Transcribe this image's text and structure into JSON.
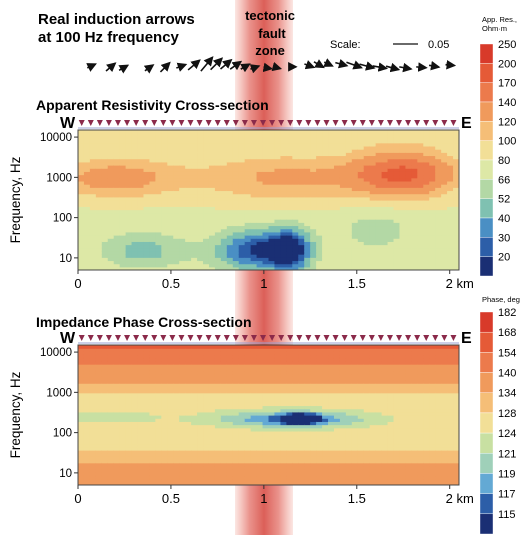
{
  "arrows_title": [
    "Real induction arrows",
    "at 100 Hz frequency"
  ],
  "fault_label": [
    "tectonic",
    "fault",
    "zone"
  ],
  "scale": {
    "label": "Scale:",
    "value": "0.05"
  },
  "induction_arrows": [
    {
      "x": 0.02,
      "angle": -25,
      "len": 0.9
    },
    {
      "x": 0.08,
      "angle": -40,
      "len": 1.2
    },
    {
      "x": 0.12,
      "angle": -30,
      "len": 1.0
    },
    {
      "x": 0.2,
      "angle": -35,
      "len": 1.0
    },
    {
      "x": 0.25,
      "angle": -45,
      "len": 1.3
    },
    {
      "x": 0.3,
      "angle": -20,
      "len": 1.0
    },
    {
      "x": 0.34,
      "angle": -40,
      "len": 1.5
    },
    {
      "x": 0.38,
      "angle": -50,
      "len": 1.8
    },
    {
      "x": 0.41,
      "angle": -45,
      "len": 1.6
    },
    {
      "x": 0.44,
      "angle": -40,
      "len": 1.4
    },
    {
      "x": 0.47,
      "angle": -35,
      "len": 1.3
    },
    {
      "x": 0.5,
      "angle": -30,
      "len": 1.0
    },
    {
      "x": 0.53,
      "angle": -20,
      "len": 0.9
    },
    {
      "x": 0.57,
      "angle": 10,
      "len": 0.8
    },
    {
      "x": 0.6,
      "angle": 15,
      "len": 0.7
    },
    {
      "x": 0.65,
      "angle": 0,
      "len": 0.6
    },
    {
      "x": 0.7,
      "angle": 20,
      "len": 1.0
    },
    {
      "x": 0.73,
      "angle": 30,
      "len": 1.1
    },
    {
      "x": 0.76,
      "angle": 25,
      "len": 0.9
    },
    {
      "x": 0.8,
      "angle": 15,
      "len": 1.2
    },
    {
      "x": 0.84,
      "angle": 20,
      "len": 1.6
    },
    {
      "x": 0.88,
      "angle": 15,
      "len": 1.5
    },
    {
      "x": 0.92,
      "angle": 10,
      "len": 1.4
    },
    {
      "x": 0.96,
      "angle": 15,
      "len": 1.3
    },
    {
      "x": 1.0,
      "angle": 10,
      "len": 1.2
    },
    {
      "x": 1.05,
      "angle": 5,
      "len": 1.0
    },
    {
      "x": 1.09,
      "angle": 10,
      "len": 1.0
    },
    {
      "x": 1.14,
      "angle": 5,
      "len": 0.9
    }
  ],
  "chart_data": [
    {
      "type": "heatmap",
      "title": "Apparent Resistivity Cross-section",
      "xlabel": "",
      "ylabel": "Frequency, Hz",
      "x_unit": "km",
      "xlim": [
        0,
        2.05
      ],
      "ylim": [
        5,
        15000
      ],
      "y_scale": "log",
      "x_ticks": [
        "0",
        "0.5",
        "1",
        "1.5",
        "2 km"
      ],
      "x_tick_values": [
        0,
        0.5,
        1,
        1.5,
        2
      ],
      "y_ticks": [
        "10000",
        "1000",
        "100",
        "10"
      ],
      "y_tick_values": [
        10000,
        1000,
        100,
        10
      ],
      "west_label": "W",
      "east_label": "E",
      "colorbar": {
        "title": [
          "App. Res.,",
          "Ohm·m"
        ],
        "levels": [
          250,
          200,
          170,
          140,
          120,
          100,
          80,
          66,
          52,
          40,
          30,
          20
        ],
        "colors": [
          "#d83a2a",
          "#e55a37",
          "#ec7a4c",
          "#f09a5c",
          "#f5be77",
          "#f2df97",
          "#dde8a6",
          "#b3d8a5",
          "#7fc1b1",
          "#4a8fc4",
          "#2c5ea8",
          "#1a2f74"
        ]
      },
      "features": [
        {
          "type": "fault_zone",
          "x_start": 0.9,
          "x_end": 1.15
        }
      ]
    },
    {
      "type": "heatmap",
      "title": "Impedance Phase Cross-section",
      "xlabel": "",
      "ylabel": "Frequency, Hz",
      "x_unit": "km",
      "xlim": [
        0,
        2.05
      ],
      "ylim": [
        5,
        15000
      ],
      "y_scale": "log",
      "x_ticks": [
        "0",
        "0.5",
        "1",
        "1.5",
        "2 km"
      ],
      "x_tick_values": [
        0,
        0.5,
        1,
        1.5,
        2
      ],
      "y_ticks": [
        "10000",
        "1000",
        "100",
        "10"
      ],
      "y_tick_values": [
        10000,
        1000,
        100,
        10
      ],
      "west_label": "W",
      "east_label": "E",
      "colorbar": {
        "title": [
          "Phase, deg"
        ],
        "levels": [
          182,
          168,
          154,
          140,
          134,
          128,
          124,
          121,
          119,
          117,
          115
        ],
        "colors": [
          "#d83a2a",
          "#e55a37",
          "#ec7a4c",
          "#f09a5c",
          "#f5be77",
          "#f2df97",
          "#c8e0a2",
          "#9fd0b9",
          "#63a9d4",
          "#2c5ea8",
          "#1a2f74"
        ]
      },
      "features": [
        {
          "type": "fault_zone",
          "x_start": 0.9,
          "x_end": 1.15
        }
      ]
    }
  ]
}
